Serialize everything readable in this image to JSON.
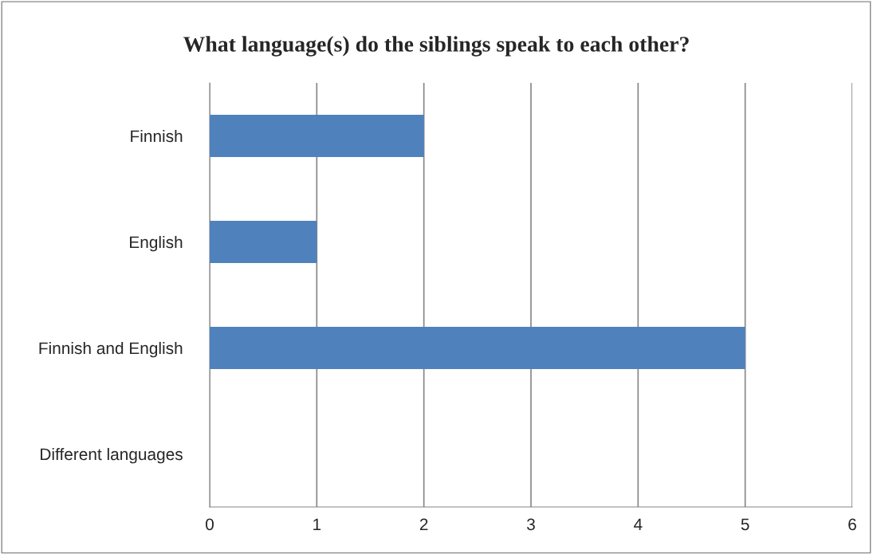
{
  "chart_data": {
    "type": "bar",
    "orientation": "horizontal",
    "title": "What language(s) do the siblings speak to each other?",
    "categories": [
      "Finnish",
      "English",
      "Finnish and English",
      "Different languages"
    ],
    "values": [
      2,
      1,
      5,
      0
    ],
    "color": "#4f81bd",
    "xlim": [
      0,
      6
    ],
    "xticks": [
      0,
      1,
      2,
      3,
      4,
      5,
      6
    ],
    "grid": "x",
    "legend": false
  }
}
